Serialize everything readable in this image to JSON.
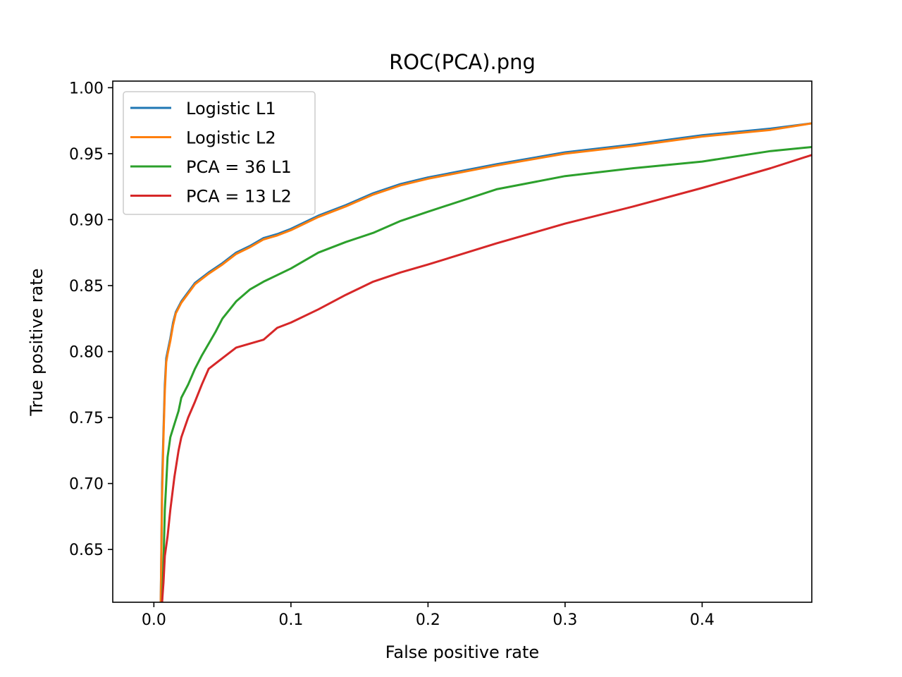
{
  "chart_data": {
    "type": "line",
    "title": "ROC(PCA).png",
    "xlabel": "False positive rate",
    "ylabel": "True positive rate",
    "xlim": [
      -0.03,
      0.48
    ],
    "ylim": [
      0.61,
      1.005
    ],
    "xticks": [
      {
        "value": 0.0,
        "label": "0.0"
      },
      {
        "value": 0.1,
        "label": "0.1"
      },
      {
        "value": 0.2,
        "label": "0.2"
      },
      {
        "value": 0.3,
        "label": "0.3"
      },
      {
        "value": 0.4,
        "label": "0.4"
      }
    ],
    "yticks": [
      {
        "value": 0.65,
        "label": "0.65"
      },
      {
        "value": 0.7,
        "label": "0.70"
      },
      {
        "value": 0.75,
        "label": "0.75"
      },
      {
        "value": 0.8,
        "label": "0.80"
      },
      {
        "value": 0.85,
        "label": "0.85"
      },
      {
        "value": 0.9,
        "label": "0.90"
      },
      {
        "value": 0.95,
        "label": "0.95"
      },
      {
        "value": 1.0,
        "label": "1.00"
      }
    ],
    "grid": false,
    "legend": "upper-left",
    "series": [
      {
        "name": "Logistic L1",
        "color": "#1f77b4",
        "x": [
          0.005,
          0.006,
          0.007,
          0.008,
          0.009,
          0.01,
          0.012,
          0.014,
          0.016,
          0.02,
          0.025,
          0.03,
          0.04,
          0.05,
          0.06,
          0.07,
          0.08,
          0.09,
          0.1,
          0.12,
          0.14,
          0.16,
          0.18,
          0.2,
          0.25,
          0.3,
          0.35,
          0.4,
          0.45,
          0.48
        ],
        "y": [
          0.61,
          0.7,
          0.74,
          0.775,
          0.795,
          0.8,
          0.81,
          0.822,
          0.83,
          0.838,
          0.845,
          0.852,
          0.86,
          0.867,
          0.875,
          0.88,
          0.886,
          0.889,
          0.893,
          0.903,
          0.911,
          0.92,
          0.927,
          0.932,
          0.942,
          0.951,
          0.957,
          0.964,
          0.969,
          0.973
        ]
      },
      {
        "name": "Logistic L2",
        "color": "#ff7f0e",
        "x": [
          0.005,
          0.006,
          0.007,
          0.008,
          0.009,
          0.01,
          0.012,
          0.014,
          0.016,
          0.02,
          0.025,
          0.03,
          0.04,
          0.05,
          0.06,
          0.07,
          0.08,
          0.09,
          0.1,
          0.12,
          0.14,
          0.16,
          0.18,
          0.2,
          0.25,
          0.3,
          0.35,
          0.4,
          0.45,
          0.48
        ],
        "y": [
          0.61,
          0.69,
          0.735,
          0.77,
          0.792,
          0.798,
          0.808,
          0.82,
          0.829,
          0.837,
          0.844,
          0.851,
          0.859,
          0.866,
          0.874,
          0.879,
          0.885,
          0.888,
          0.892,
          0.902,
          0.91,
          0.919,
          0.926,
          0.931,
          0.941,
          0.95,
          0.956,
          0.963,
          0.968,
          0.973
        ]
      },
      {
        "name": "PCA = 36 L1",
        "color": "#2ca02c",
        "x": [
          0.006,
          0.007,
          0.008,
          0.009,
          0.01,
          0.012,
          0.015,
          0.018,
          0.02,
          0.025,
          0.03,
          0.035,
          0.04,
          0.045,
          0.05,
          0.06,
          0.07,
          0.08,
          0.1,
          0.12,
          0.14,
          0.16,
          0.18,
          0.2,
          0.25,
          0.3,
          0.35,
          0.4,
          0.45,
          0.48
        ],
        "y": [
          0.61,
          0.64,
          0.68,
          0.7,
          0.72,
          0.735,
          0.745,
          0.755,
          0.765,
          0.775,
          0.787,
          0.797,
          0.806,
          0.815,
          0.825,
          0.838,
          0.847,
          0.853,
          0.863,
          0.875,
          0.883,
          0.89,
          0.899,
          0.906,
          0.923,
          0.933,
          0.939,
          0.944,
          0.952,
          0.955
        ]
      },
      {
        "name": "PCA = 13 L2",
        "color": "#d62728",
        "x": [
          0.006,
          0.007,
          0.008,
          0.01,
          0.012,
          0.015,
          0.018,
          0.02,
          0.025,
          0.03,
          0.035,
          0.04,
          0.05,
          0.06,
          0.07,
          0.08,
          0.09,
          0.1,
          0.12,
          0.14,
          0.16,
          0.18,
          0.2,
          0.25,
          0.3,
          0.35,
          0.4,
          0.45,
          0.48
        ],
        "y": [
          0.61,
          0.625,
          0.645,
          0.66,
          0.68,
          0.705,
          0.725,
          0.735,
          0.75,
          0.762,
          0.775,
          0.787,
          0.795,
          0.803,
          0.806,
          0.809,
          0.818,
          0.822,
          0.832,
          0.843,
          0.853,
          0.86,
          0.866,
          0.882,
          0.897,
          0.91,
          0.924,
          0.939,
          0.949
        ]
      }
    ]
  }
}
